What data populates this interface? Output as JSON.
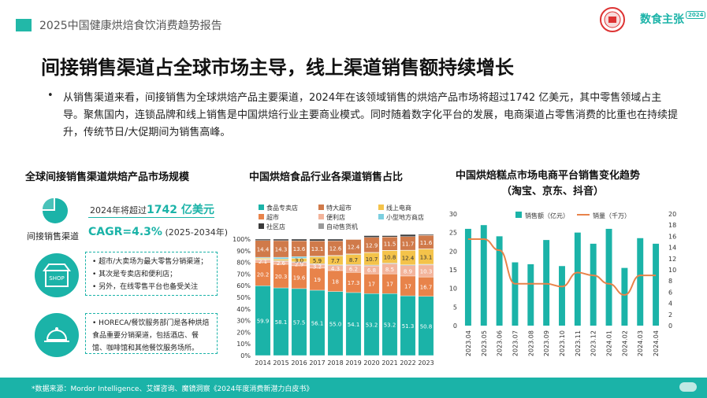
{
  "header": {
    "report_title": "2025中国健康烘焙食饮消费趋势报告",
    "brand": "数食主张",
    "brand_badge": "2024"
  },
  "main_title": "间接销售渠道占全球市场主导，线上渠道销售额持续增长",
  "bullet": "从销售渠道来看，间接销售为全球烘焙产品主要渠道，2024年在该领域销售的烘焙产品市场将超过1742 亿美元，其中零售领域占主导。聚焦国内，连锁品牌和线上销售是中国烘焙行业主要商业模式。同时随着数字化平台的发展，电商渠道占零售消费的比重也在持续提升，传统节日/大促期间为销售高峰。",
  "left": {
    "title": "全球间接销售渠道烘焙产品市场规模",
    "icon_label": "间接销售渠道",
    "stat1_prefix": "2024年将超过",
    "stat1_value": "1742 亿美元",
    "stat2_prefix": "CAGR=4.3%",
    "stat2_suffix": "(2025-2034年)",
    "box1": [
      "超市/大卖场为最大零售分销渠道；",
      "其次是专卖店和便利店；",
      "另外，在线零售平台也备受关注"
    ],
    "box2": [
      "HORECA/餐饮服务部门是各种烘焙食品重要分销渠道，包括酒店、餐馆、咖啡馆和其他餐饮服务场所。"
    ],
    "shop_sign": "SHOP"
  },
  "footer": "*数据来源：Mordor Intelligence、艾媒咨询、魔镜洞察《2024年度消费新潜力白皮书》",
  "colors": {
    "teal": "#1bb3a8",
    "orange": "#e8834a",
    "grey": "#9aa3a6"
  },
  "chart_data": [
    {
      "type": "bar",
      "stacked": true,
      "title": "中国烘焙食品行业各渠道销售占比",
      "categories": [
        "2014",
        "2015",
        "2016",
        "2017",
        "2018",
        "2019",
        "2020",
        "2021",
        "2022",
        "2023"
      ],
      "ylim": [
        0,
        100
      ],
      "yticks": [
        "0%",
        "10%",
        "20%",
        "30%",
        "40%",
        "50%",
        "60%",
        "70%",
        "80%",
        "90%",
        "100%"
      ],
      "series": [
        {
          "name": "食品专卖店",
          "color": "#1bb3a8",
          "values": [
            59.9,
            58.1,
            57.5,
            56.1,
            55.0,
            54.1,
            53.2,
            53.2,
            51.3,
            50.8
          ]
        },
        {
          "name": "超市",
          "color": "#e8834a",
          "values": [
            20.2,
            20.3,
            19.6,
            19,
            18,
            17.3,
            17,
            17,
            17,
            16.7
          ]
        },
        {
          "name": "便利店",
          "color": "#f3b49b",
          "values": [
            2.1,
            2.6,
            2.9,
            3.2,
            4.3,
            6.2,
            6.8,
            8.5,
            8.9,
            10.3
          ]
        },
        {
          "name": "自动售货机",
          "color": "#9b9b9b",
          "values": [
            0.5,
            0.5,
            0.5,
            0.6,
            0.6,
            0.6,
            0.7,
            0.7,
            0.7,
            0.6
          ]
        },
        {
          "name": "线上电商",
          "color": "#f4c34a",
          "values": [
            0.9,
            1.3,
            3,
            5.9,
            7.7,
            8.7,
            10.7,
            10.8,
            12.4,
            13.1
          ]
        },
        {
          "name": "小型地方商店",
          "color": "#7ccfe0",
          "values": [
            0.8,
            1.6,
            1.5,
            0.5,
            0.4,
            0.4,
            0.2,
            0.2,
            0.2,
            0.1
          ]
        },
        {
          "name": "特大超市",
          "color": "#d07a4a",
          "values": [
            14.4,
            14.3,
            13.6,
            13.1,
            12.6,
            12.4,
            12.9,
            11.5,
            11.7,
            11.6
          ]
        },
        {
          "name": "社区店",
          "color": "#3a3a3a",
          "values": [
            1.2,
            1.3,
            1.4,
            1.6,
            1.4,
            0.3,
            1.5,
            1.1,
            1.8,
            0.8
          ]
        }
      ],
      "labels": {
        "食品专卖店": [
          "59.9",
          "58.1",
          "57.5",
          "56.1",
          "55.0",
          "54.1",
          "53.2",
          "53.2",
          "51.3",
          "50.8"
        ],
        "超市": [
          "20.2",
          "20.3",
          "19.6",
          "19",
          "18",
          "17.3",
          "17",
          "17",
          "17",
          "16.7"
        ],
        "线上电商": [
          "",
          "",
          "3.0",
          "5.9",
          "7.7",
          "8.7",
          "10.7",
          "10.8",
          "12.4",
          "13.1"
        ],
        "特大超市": [
          "14.4",
          "14.3",
          "13.6",
          "13.1",
          "12.6",
          "12.4",
          "12.9",
          "11.5",
          "11.7",
          "11.6"
        ],
        "便利店": [
          "2.1",
          "2.6",
          "2.9",
          "3.2",
          "4.3",
          "6.2",
          "6.8",
          "8.5",
          "8.9",
          "10.3"
        ]
      },
      "legend": "top"
    },
    {
      "type": "bar+line",
      "title": "中国烘焙糕点市场电商平台销售变化趋势",
      "subtitle": "（淘宝、京东、抖音）",
      "categories": [
        "2023.04",
        "2023.05",
        "2023.06",
        "2023.07",
        "2023.08",
        "2023.09",
        "2023.10",
        "2023.11",
        "2023.12",
        "2024.01",
        "2024.02",
        "2024.03",
        "2024.04"
      ],
      "series": [
        {
          "name": "销售额（亿元）",
          "type": "bar",
          "axis": "left",
          "color": "#1bb3a8",
          "values": [
            26,
            27,
            24,
            17,
            16.5,
            23,
            16,
            25,
            22,
            26,
            15.5,
            23.5,
            22
          ]
        },
        {
          "name": "销量（千万）",
          "type": "line",
          "axis": "right",
          "color": "#e8834a",
          "values": [
            15.5,
            15.5,
            13.5,
            7.5,
            7.5,
            7.5,
            7,
            9.5,
            9,
            7.5,
            5.5,
            9,
            9
          ]
        }
      ],
      "ylim_left": [
        0,
        30
      ],
      "yticks_left": [
        "0",
        "5",
        "10",
        "15",
        "20",
        "25",
        "30"
      ],
      "ylim_right": [
        0,
        20
      ],
      "yticks_right": [
        "0",
        "2",
        "4",
        "6",
        "8",
        "10",
        "12",
        "14",
        "16",
        "18",
        "20"
      ],
      "legend": "top"
    }
  ]
}
